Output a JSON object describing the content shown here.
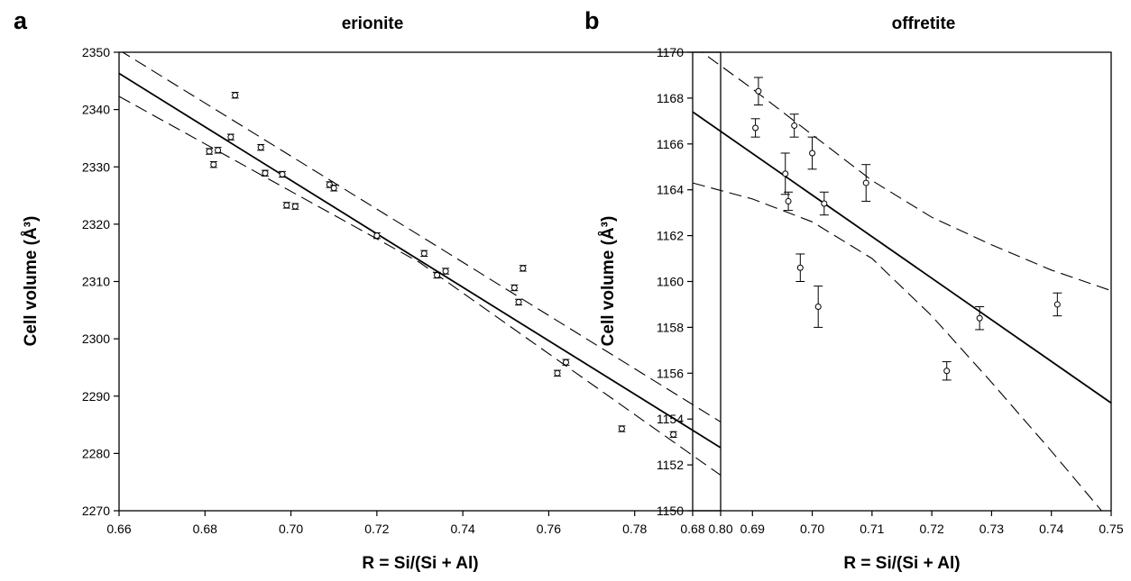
{
  "chart_data": [
    {
      "panel": "a",
      "type": "scatter",
      "title": "erionite",
      "xlabel": "R = Si/(Si + Al)",
      "ylabel": "Cell volume (Å³)",
      "xlim": [
        0.66,
        0.8
      ],
      "ylim": [
        2270,
        2350
      ],
      "xticks": [
        "0.66",
        "0.68",
        "0.70",
        "0.72",
        "0.74",
        "0.76",
        "0.78",
        "0.80"
      ],
      "yticks": [
        "2270",
        "2280",
        "2290",
        "2300",
        "2310",
        "2320",
        "2330",
        "2340",
        "2350"
      ],
      "grid": false,
      "points": [
        {
          "x": 0.681,
          "y": 2332.7,
          "err": 0.5
        },
        {
          "x": 0.682,
          "y": 2330.4,
          "err": 0.5
        },
        {
          "x": 0.683,
          "y": 2332.9,
          "err": 0.5
        },
        {
          "x": 0.686,
          "y": 2335.2,
          "err": 0.5
        },
        {
          "x": 0.687,
          "y": 2342.5,
          "err": 0.5
        },
        {
          "x": 0.693,
          "y": 2333.4,
          "err": 0.5
        },
        {
          "x": 0.694,
          "y": 2328.9,
          "err": 0.5
        },
        {
          "x": 0.698,
          "y": 2328.7,
          "err": 0.5
        },
        {
          "x": 0.699,
          "y": 2323.3,
          "err": 0.5
        },
        {
          "x": 0.701,
          "y": 2323.1,
          "err": 0.5
        },
        {
          "x": 0.709,
          "y": 2326.9,
          "err": 0.5
        },
        {
          "x": 0.71,
          "y": 2326.3,
          "err": 0.5
        },
        {
          "x": 0.72,
          "y": 2318.0,
          "err": 0.5
        },
        {
          "x": 0.731,
          "y": 2314.9,
          "err": 0.5
        },
        {
          "x": 0.734,
          "y": 2311.1,
          "err": 0.5
        },
        {
          "x": 0.736,
          "y": 2311.8,
          "err": 0.5
        },
        {
          "x": 0.752,
          "y": 2308.9,
          "err": 0.5
        },
        {
          "x": 0.753,
          "y": 2306.4,
          "err": 0.5
        },
        {
          "x": 0.754,
          "y": 2312.3,
          "err": 0.5
        },
        {
          "x": 0.762,
          "y": 2294.0,
          "err": 0.5
        },
        {
          "x": 0.764,
          "y": 2295.9,
          "err": 0.5
        },
        {
          "x": 0.777,
          "y": 2284.3,
          "err": 0.5
        },
        {
          "x": 0.789,
          "y": 2283.3,
          "err": 0.5
        }
      ],
      "fit_line": [
        [
          0.66,
          2346.3
        ],
        [
          0.8,
          2281.0
        ]
      ],
      "confidence_upper": [
        [
          0.66,
          2350.4
        ],
        [
          0.73,
          2318.0
        ],
        [
          0.8,
          2285.5
        ]
      ],
      "confidence_lower": [
        [
          0.66,
          2342.3
        ],
        [
          0.73,
          2313.3
        ],
        [
          0.8,
          2276.2
        ]
      ]
    },
    {
      "panel": "b",
      "type": "scatter",
      "title": "offretite",
      "xlabel": "R = Si/(Si + Al)",
      "ylabel": "Cell volume (Å³)",
      "xlim": [
        0.68,
        0.75
      ],
      "ylim": [
        1150,
        1170
      ],
      "xticks": [
        "0.68",
        "0.69",
        "0.70",
        "0.71",
        "0.72",
        "0.73",
        "0.74",
        "0.75"
      ],
      "yticks": [
        "1150",
        "1152",
        "1154",
        "1156",
        "1158",
        "1160",
        "1162",
        "1164",
        "1166",
        "1168",
        "1170"
      ],
      "grid": false,
      "points": [
        {
          "x": 0.6905,
          "y": 1166.7,
          "err": 0.4
        },
        {
          "x": 0.691,
          "y": 1168.3,
          "err": 0.6
        },
        {
          "x": 0.6955,
          "y": 1164.7,
          "err": 0.9
        },
        {
          "x": 0.696,
          "y": 1163.5,
          "err": 0.4
        },
        {
          "x": 0.697,
          "y": 1166.8,
          "err": 0.5
        },
        {
          "x": 0.698,
          "y": 1160.6,
          "err": 0.6
        },
        {
          "x": 0.7,
          "y": 1165.6,
          "err": 0.7
        },
        {
          "x": 0.701,
          "y": 1158.9,
          "err": 0.9
        },
        {
          "x": 0.702,
          "y": 1163.4,
          "err": 0.5
        },
        {
          "x": 0.709,
          "y": 1164.3,
          "err": 0.8
        },
        {
          "x": 0.7225,
          "y": 1156.1,
          "err": 0.4
        },
        {
          "x": 0.728,
          "y": 1158.4,
          "err": 0.5
        },
        {
          "x": 0.741,
          "y": 1159.0,
          "err": 0.5
        }
      ],
      "fit_line": [
        [
          0.68,
          1167.4
        ],
        [
          0.75,
          1154.7
        ]
      ],
      "confidence_upper": [
        [
          0.68,
          1170.3
        ],
        [
          0.69,
          1168.4
        ],
        [
          0.7,
          1166.4
        ],
        [
          0.71,
          1164.4
        ],
        [
          0.72,
          1162.8
        ],
        [
          0.73,
          1161.6
        ],
        [
          0.74,
          1160.5
        ],
        [
          0.75,
          1159.6
        ]
      ],
      "confidence_lower": [
        [
          0.68,
          1164.3
        ],
        [
          0.69,
          1163.6
        ],
        [
          0.7,
          1162.6
        ],
        [
          0.71,
          1161.0
        ],
        [
          0.72,
          1158.5
        ],
        [
          0.73,
          1155.6
        ],
        [
          0.74,
          1152.6
        ],
        [
          0.75,
          1149.5
        ]
      ]
    }
  ]
}
